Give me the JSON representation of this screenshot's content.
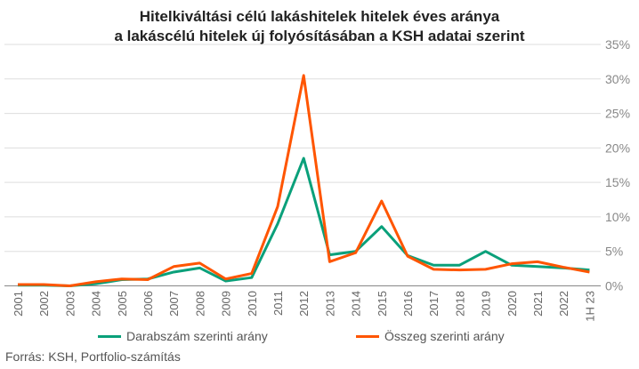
{
  "chart_data": {
    "type": "line",
    "title": [
      "Hitelkiváltási célú lakáshitelek hitelek éves aránya",
      "a lakáscélú hitelek új folyósításában a KSH adatai szerint"
    ],
    "x": [
      "2001",
      "2002",
      "2003",
      "2004",
      "2005",
      "2006",
      "2007",
      "2008",
      "2009",
      "2010",
      "2011",
      "2012",
      "2013",
      "2014",
      "2015",
      "2016",
      "2017",
      "2018",
      "2019",
      "2020",
      "2021",
      "2022",
      "1H 23"
    ],
    "series": [
      {
        "name": "Darabszám szerinti arány",
        "color": "#0aa07a",
        "values": [
          0.1,
          0.1,
          0,
          0.3,
          0.9,
          1.0,
          2.0,
          2.6,
          0.7,
          1.2,
          9.0,
          18.5,
          4.5,
          5.0,
          8.6,
          4.4,
          3.0,
          3.0,
          5.0,
          3.0,
          2.8,
          2.6,
          2.3
        ]
      },
      {
        "name": "Összeg szerinti arány",
        "color": "#ff5500",
        "values": [
          0.2,
          0.2,
          0,
          0.6,
          1.0,
          0.9,
          2.8,
          3.3,
          1.0,
          1.8,
          11.5,
          30.5,
          3.5,
          4.8,
          12.3,
          4.3,
          2.4,
          2.3,
          2.4,
          3.2,
          3.5,
          2.7,
          2.0
        ]
      }
    ],
    "yticks": [
      "0%",
      "5%",
      "10%",
      "15%",
      "20%",
      "25%",
      "30%",
      "35%"
    ],
    "ylim": [
      0,
      35
    ],
    "grid": true,
    "legend": "bottom",
    "source": "Forrás: KSH, Portfolio-számítás"
  }
}
